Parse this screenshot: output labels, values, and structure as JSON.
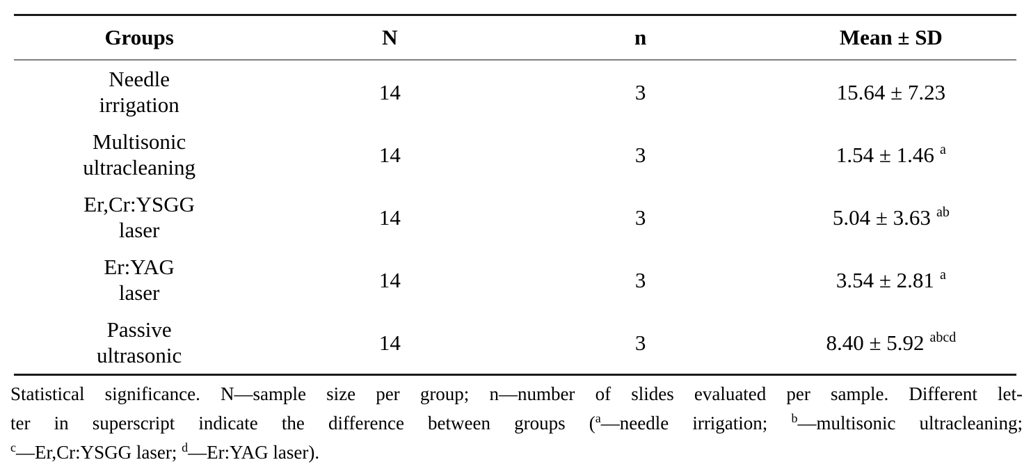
{
  "table": {
    "headers": {
      "groups": "Groups",
      "N": "N",
      "n": "n",
      "mean_sd": "Mean ± SD"
    },
    "rows": [
      {
        "group_line1": "Needle",
        "group_line2": "irrigation",
        "N": "14",
        "n": "3",
        "mean_sd": "15.64 ± 7.23",
        "superscript": ""
      },
      {
        "group_line1": "Multisonic",
        "group_line2": "ultracleaning",
        "N": "14",
        "n": "3",
        "mean_sd": "1.54 ± 1.46",
        "superscript": "a"
      },
      {
        "group_line1": "Er,Cr:YSGG",
        "group_line2": "laser",
        "N": "14",
        "n": "3",
        "mean_sd": "5.04 ± 3.63",
        "superscript": "ab"
      },
      {
        "group_line1": "Er:YAG",
        "group_line2": "laser",
        "N": "14",
        "n": "3",
        "mean_sd": "3.54 ± 2.81",
        "superscript": "a"
      },
      {
        "group_line1": "Passive",
        "group_line2": "ultrasonic",
        "N": "14",
        "n": "3",
        "mean_sd": "8.40 ± 5.92",
        "superscript": "abcd"
      }
    ]
  },
  "footnote": {
    "line1": "Statistical significance. N—sample size per group; n—number of slides evaluated per sample. Different let-",
    "line2_part1": "ter in superscript indicate the difference between groups (",
    "sup_a": "a",
    "line2_part2": "—needle irrigation; ",
    "sup_b": "b",
    "line2_part3": "—multisonic ultracleaning;",
    "sup_c": "c",
    "line3_part1": "—Er,Cr:YSGG laser; ",
    "sup_d": "d",
    "line3_part2": "—Er:YAG laser)."
  },
  "colors": {
    "text": "#000000",
    "rule_heavy": "#1a1a1a",
    "rule_light": "#7f7f7f",
    "background": "#ffffff"
  }
}
